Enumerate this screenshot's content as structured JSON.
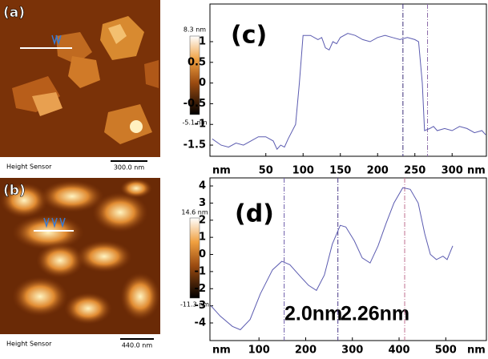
{
  "images": [
    {
      "label": "(a)",
      "caption": "Height Sensor",
      "scale_bar": "300.0 nm",
      "color_max": "8.3 nm",
      "color_min": "-5.1 nm"
    },
    {
      "label": "(b)",
      "caption": "Height Sensor",
      "scale_bar": "440.0 nm",
      "color_max": "14.6 nm",
      "color_min": "-11.3 nm"
    }
  ],
  "chart_data": [
    {
      "type": "line",
      "label": "(c)",
      "y_label": "nm",
      "x_label": "nm",
      "color": "#5b5bb0",
      "x": [
        -22,
        -10,
        0,
        10,
        20,
        30,
        40,
        50,
        60,
        65,
        70,
        75,
        80,
        90,
        95,
        100,
        110,
        120,
        125,
        130,
        135,
        140,
        145,
        150,
        160,
        170,
        180,
        190,
        200,
        210,
        220,
        230,
        240,
        250,
        255,
        260,
        263,
        270,
        275,
        280,
        290,
        300,
        310,
        320,
        330,
        340,
        345
      ],
      "values": [
        -1.35,
        -1.5,
        -1.55,
        -1.45,
        -1.5,
        -1.4,
        -1.3,
        -1.3,
        -1.4,
        -1.6,
        -1.5,
        -1.55,
        -1.35,
        -1.0,
        0,
        1.15,
        1.15,
        1.05,
        1.1,
        0.85,
        0.8,
        1.0,
        0.95,
        1.1,
        1.2,
        1.15,
        1.05,
        1.0,
        1.1,
        1.15,
        1.1,
        1.05,
        1.1,
        1.05,
        1.0,
        0,
        -1.15,
        -1.1,
        -1.05,
        -1.15,
        -1.1,
        -1.15,
        -1.05,
        -1.1,
        -1.2,
        -1.15,
        -1.25
      ],
      "markers": [
        {
          "x": 234,
          "color": "#3d2f7a"
        },
        {
          "x": 267,
          "color": "#8a6aa8"
        }
      ],
      "xlim": [
        -25,
        346
      ],
      "ylim": [
        -1.77,
        1.91
      ],
      "xticks": [
        50,
        100,
        150,
        200,
        250,
        300
      ],
      "yticks": [
        -1.5,
        -1,
        -0.5,
        0,
        0.5,
        1
      ]
    },
    {
      "type": "line",
      "label": "(d)",
      "y_label": "nm",
      "x_label": "nm",
      "color": "#5b5bb0",
      "annotations": [
        "2.0nm",
        "2.26nm"
      ],
      "x": [
        -3,
        17,
        43,
        60,
        81,
        103,
        129,
        149,
        166,
        189,
        206,
        223,
        240,
        257,
        274,
        286,
        304,
        321,
        338,
        355,
        372,
        389,
        408,
        424,
        441,
        455,
        467,
        480,
        494,
        503,
        515
      ],
      "values": [
        -3.0,
        -3.6,
        -4.2,
        -4.4,
        -3.8,
        -2.3,
        -0.9,
        -0.4,
        -0.6,
        -1.3,
        -1.8,
        -2.1,
        -1.2,
        0.6,
        1.7,
        1.6,
        0.8,
        -0.2,
        -0.5,
        0.5,
        1.8,
        3.0,
        3.9,
        3.8,
        3.0,
        1.2,
        0.0,
        -0.3,
        -0.1,
        -0.3,
        0.5
      ],
      "markers": [
        {
          "x": 154,
          "color": "#6a5aa8"
        },
        {
          "x": 269,
          "color": "#4a3a88"
        },
        {
          "x": 412,
          "color": "#c07090"
        }
      ],
      "xlim": [
        -5,
        587
      ],
      "ylim": [
        -5.03,
        4.47
      ],
      "xticks": [
        100,
        200,
        300,
        400,
        500
      ],
      "yticks": [
        -4,
        -3,
        -2,
        -1,
        0,
        1,
        2,
        3,
        4
      ]
    }
  ]
}
